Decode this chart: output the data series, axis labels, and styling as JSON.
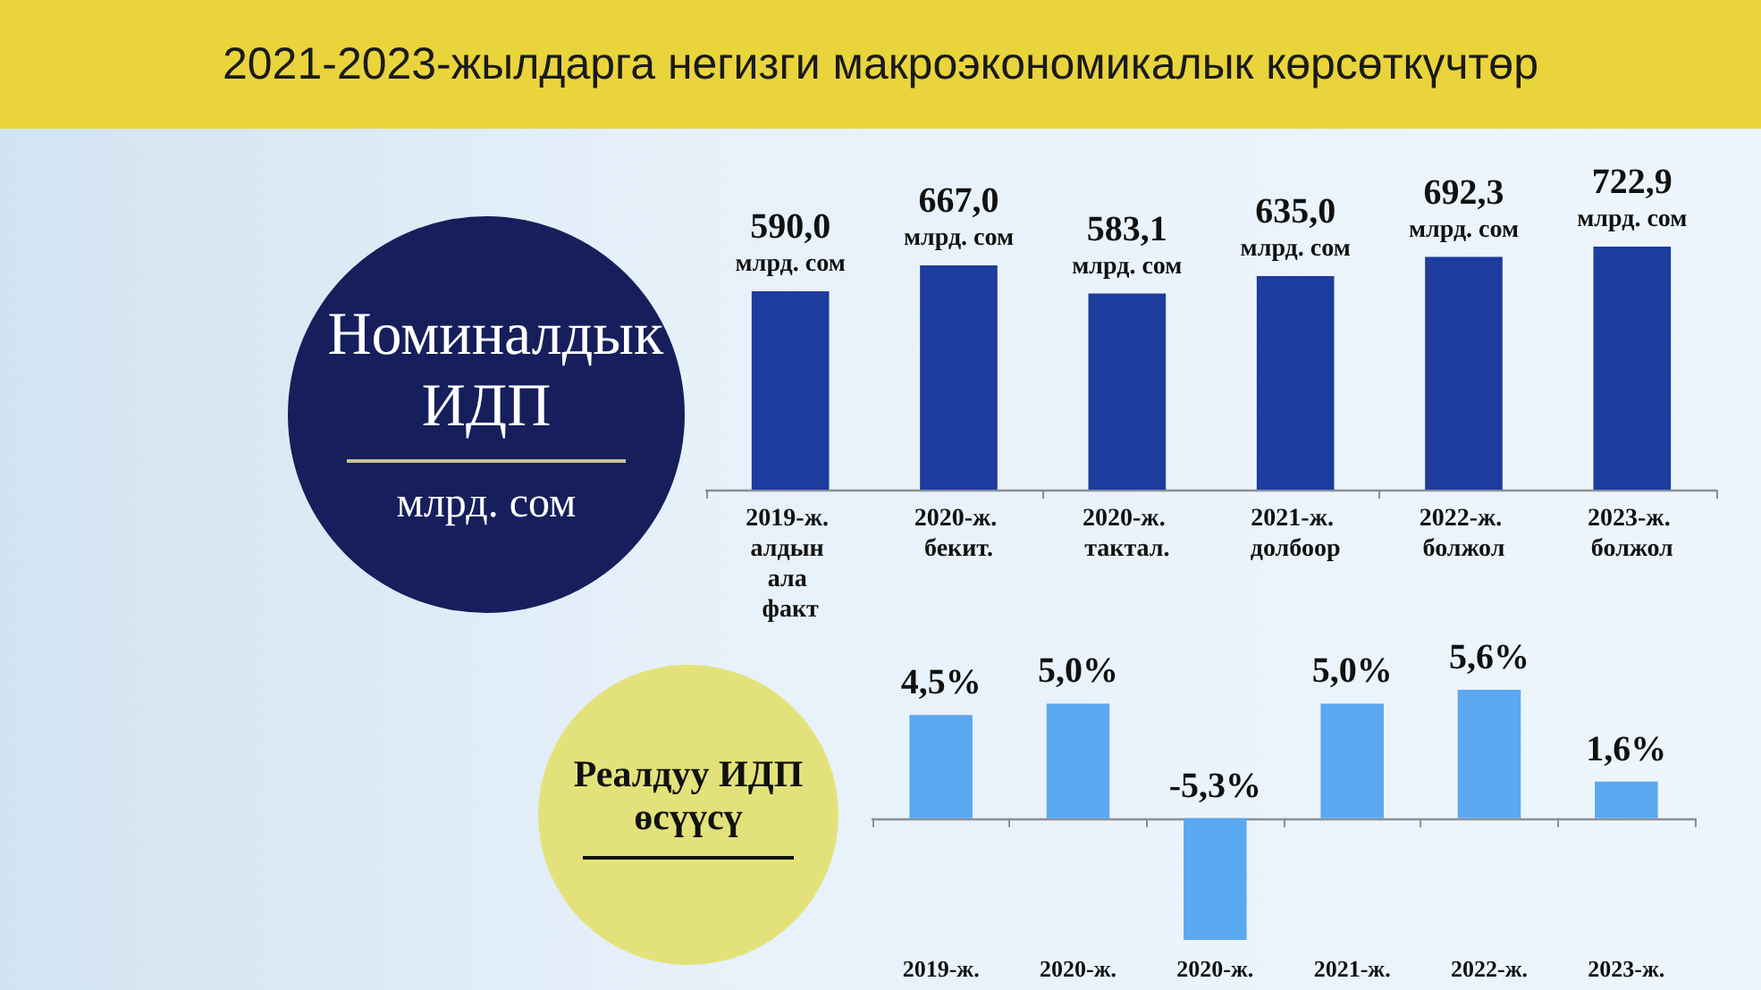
{
  "chart_data": [
    {
      "type": "bar",
      "title": "2021-2023-жылдарга негизги макроэкономикалык көрсөткүчтөр",
      "subtitle": "Номиналдык ИДП",
      "ylabel": "млрд. сом",
      "categories": [
        "2019-ж. алдын ала факт",
        "2020-ж. бекит.",
        "2020-ж. тактал.",
        "2021-ж. долбоор",
        "2022-ж. болжол",
        "2023-ж. болжол"
      ],
      "values": [
        590.0,
        667.0,
        583.1,
        635.0,
        692.3,
        722.9
      ],
      "color": "#1d3c9e",
      "value_labels": [
        "590,0 млрд. сом",
        "667,0 млрд. сом",
        "583,1 млрд. сом",
        "635,0 млрд. сом",
        "692,3 млрд. сом",
        "722,9 млрд. сом"
      ]
    },
    {
      "type": "bar",
      "subtitle": "Реалдуу ИДП өсүүсү",
      "categories": [
        "2019-ж.",
        "2020-ж.",
        "2020-ж.",
        "2021-ж.",
        "2022-ж.",
        "2023-ж."
      ],
      "values": [
        4.5,
        5.0,
        -5.3,
        5.0,
        5.6,
        1.6
      ],
      "color": "#5aa8f0",
      "value_labels": [
        "4,5%",
        "5,0%",
        "-5,3%",
        "5,0%",
        "5,6%",
        "1,6%"
      ]
    }
  ]
}
